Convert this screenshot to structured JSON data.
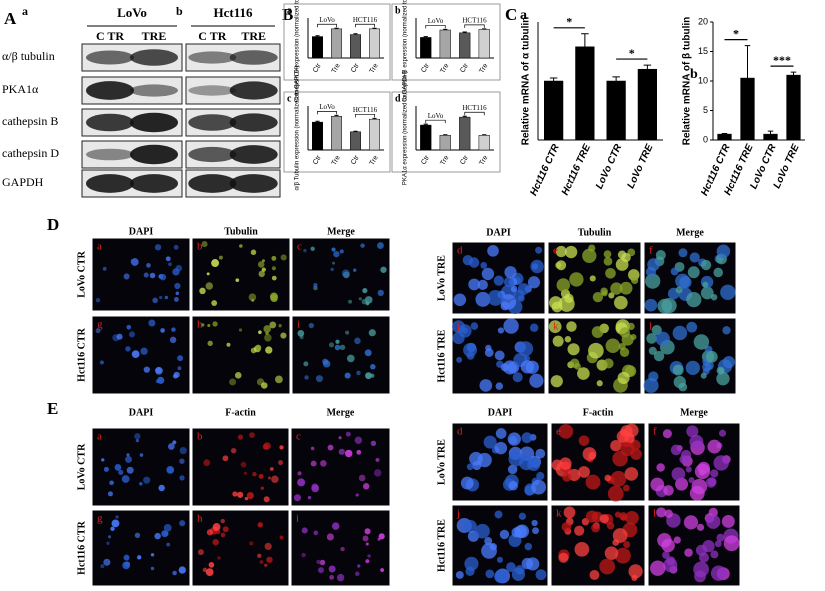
{
  "panel_a": {
    "label": "A",
    "sub_labels": [
      "a",
      "b"
    ],
    "cell_lines": [
      "LoVo",
      "Hct116"
    ],
    "columns": [
      [
        "C TR",
        "TRE"
      ],
      [
        "C TR",
        "TRE"
      ]
    ],
    "rows": [
      "α/β tubulin",
      "PKA1α",
      "cathepsin B",
      "cathepsin D",
      "GAPDH"
    ]
  },
  "panel_b_label": "B",
  "panel_c_label": "C",
  "chart_data": [
    {
      "type": "bar",
      "panel": "a",
      "ylabel": "Cathepsin D expression (normalized to GAPDH)",
      "categories": [
        "Ctr",
        "Tre",
        "Ctr",
        "Tre"
      ],
      "groups": [
        "LoVo",
        "HCT116"
      ],
      "values": [
        0.75,
        1.02,
        0.82,
        1.02
      ],
      "errors": [
        0.03,
        0.02,
        0.03,
        0.02
      ],
      "colors": [
        "#000000",
        "#a6a6a6",
        "#595959",
        "#d0d0d0"
      ],
      "ylim": [
        0,
        1.4
      ]
    },
    {
      "type": "bar",
      "panel": "b",
      "ylabel": "Cathepsin B expression (normalized to GAPDH)",
      "categories": [
        "Ctr",
        "Tre",
        "Ctr",
        "Tre"
      ],
      "groups": [
        "LoVo",
        "HCT116"
      ],
      "values": [
        0.72,
        0.98,
        0.88,
        1.0
      ],
      "errors": [
        0.03,
        0.02,
        0.03,
        0.02
      ],
      "colors": [
        "#000000",
        "#a6a6a6",
        "#595959",
        "#d0d0d0"
      ],
      "ylim": [
        0,
        1.4
      ]
    },
    {
      "type": "bar",
      "panel": "c",
      "ylabel": "α/β Tubulin expression (normalized to GAPDH)",
      "categories": [
        "Ctr",
        "Tre",
        "Ctr",
        "Tre"
      ],
      "groups": [
        "LoVo",
        "HCT116"
      ],
      "values": [
        0.95,
        1.15,
        0.62,
        1.05
      ],
      "errors": [
        0.03,
        0.03,
        0.02,
        0.03
      ],
      "colors": [
        "#000000",
        "#a6a6a6",
        "#595959",
        "#d0d0d0"
      ],
      "ylim": [
        0,
        1.5
      ]
    },
    {
      "type": "bar",
      "panel": "d",
      "ylabel": "PKA1α expression (normalized to GAPDH)",
      "categories": [
        "Ctr",
        "Tre",
        "Ctr",
        "Tre"
      ],
      "groups": [
        "LoVo",
        "HCT116"
      ],
      "values": [
        0.85,
        0.5,
        1.12,
        0.5
      ],
      "errors": [
        0.03,
        0.02,
        0.03,
        0.02
      ],
      "colors": [
        "#000000",
        "#a6a6a6",
        "#595959",
        "#d0d0d0"
      ],
      "ylim": [
        0,
        1.5
      ]
    },
    {
      "type": "bar",
      "panel": "a",
      "ylabel": "Relative mRNA of α tubulin",
      "categories": [
        "Hct116 CTR",
        "Hct116 TRE",
        "LoVo CTR",
        "LoVo TRE"
      ],
      "values": [
        1.0,
        1.58,
        1.0,
        1.2
      ],
      "errors": [
        0.05,
        0.22,
        0.07,
        0.07
      ],
      "color": "#000000",
      "ylim": [
        0,
        2.0
      ],
      "significance": [
        "*",
        "*"
      ]
    },
    {
      "type": "bar",
      "panel": "b",
      "ylabel": "Relative mRNA of β tubulin",
      "categories": [
        "Hct116 CTR",
        "Hct116 TRE",
        "LoVo CTR",
        "LoVo TRE"
      ],
      "values": [
        1.0,
        10.5,
        1.0,
        11.0
      ],
      "errors": [
        0.1,
        5.5,
        0.5,
        0.5
      ],
      "color": "#000000",
      "ylim": [
        0,
        20
      ],
      "yticks": [
        0,
        5,
        10,
        15,
        20
      ],
      "significance": [
        "*",
        "***"
      ]
    }
  ],
  "panel_d": {
    "label": "D",
    "columns": [
      "DAPI",
      "Tubulin",
      "Merge"
    ],
    "rows": [
      "LoVo CTR",
      "Hct116 CTR",
      "LoVo TRE",
      "Hct116 TRE"
    ],
    "letters": [
      "a",
      "b",
      "c",
      "g",
      "h",
      "i",
      "d",
      "e",
      "f",
      "j",
      "k",
      "l"
    ]
  },
  "panel_e": {
    "label": "E",
    "columns": [
      "DAPI",
      "F-actin",
      "Merge"
    ],
    "rows": [
      "LoVo CTR",
      "Hct116 CTR",
      "LoVo TRE",
      "Hct116 TRE"
    ],
    "letters": [
      "a",
      "b",
      "c",
      "g",
      "h",
      "i",
      "d",
      "e",
      "f",
      "j",
      "k",
      "l"
    ]
  }
}
